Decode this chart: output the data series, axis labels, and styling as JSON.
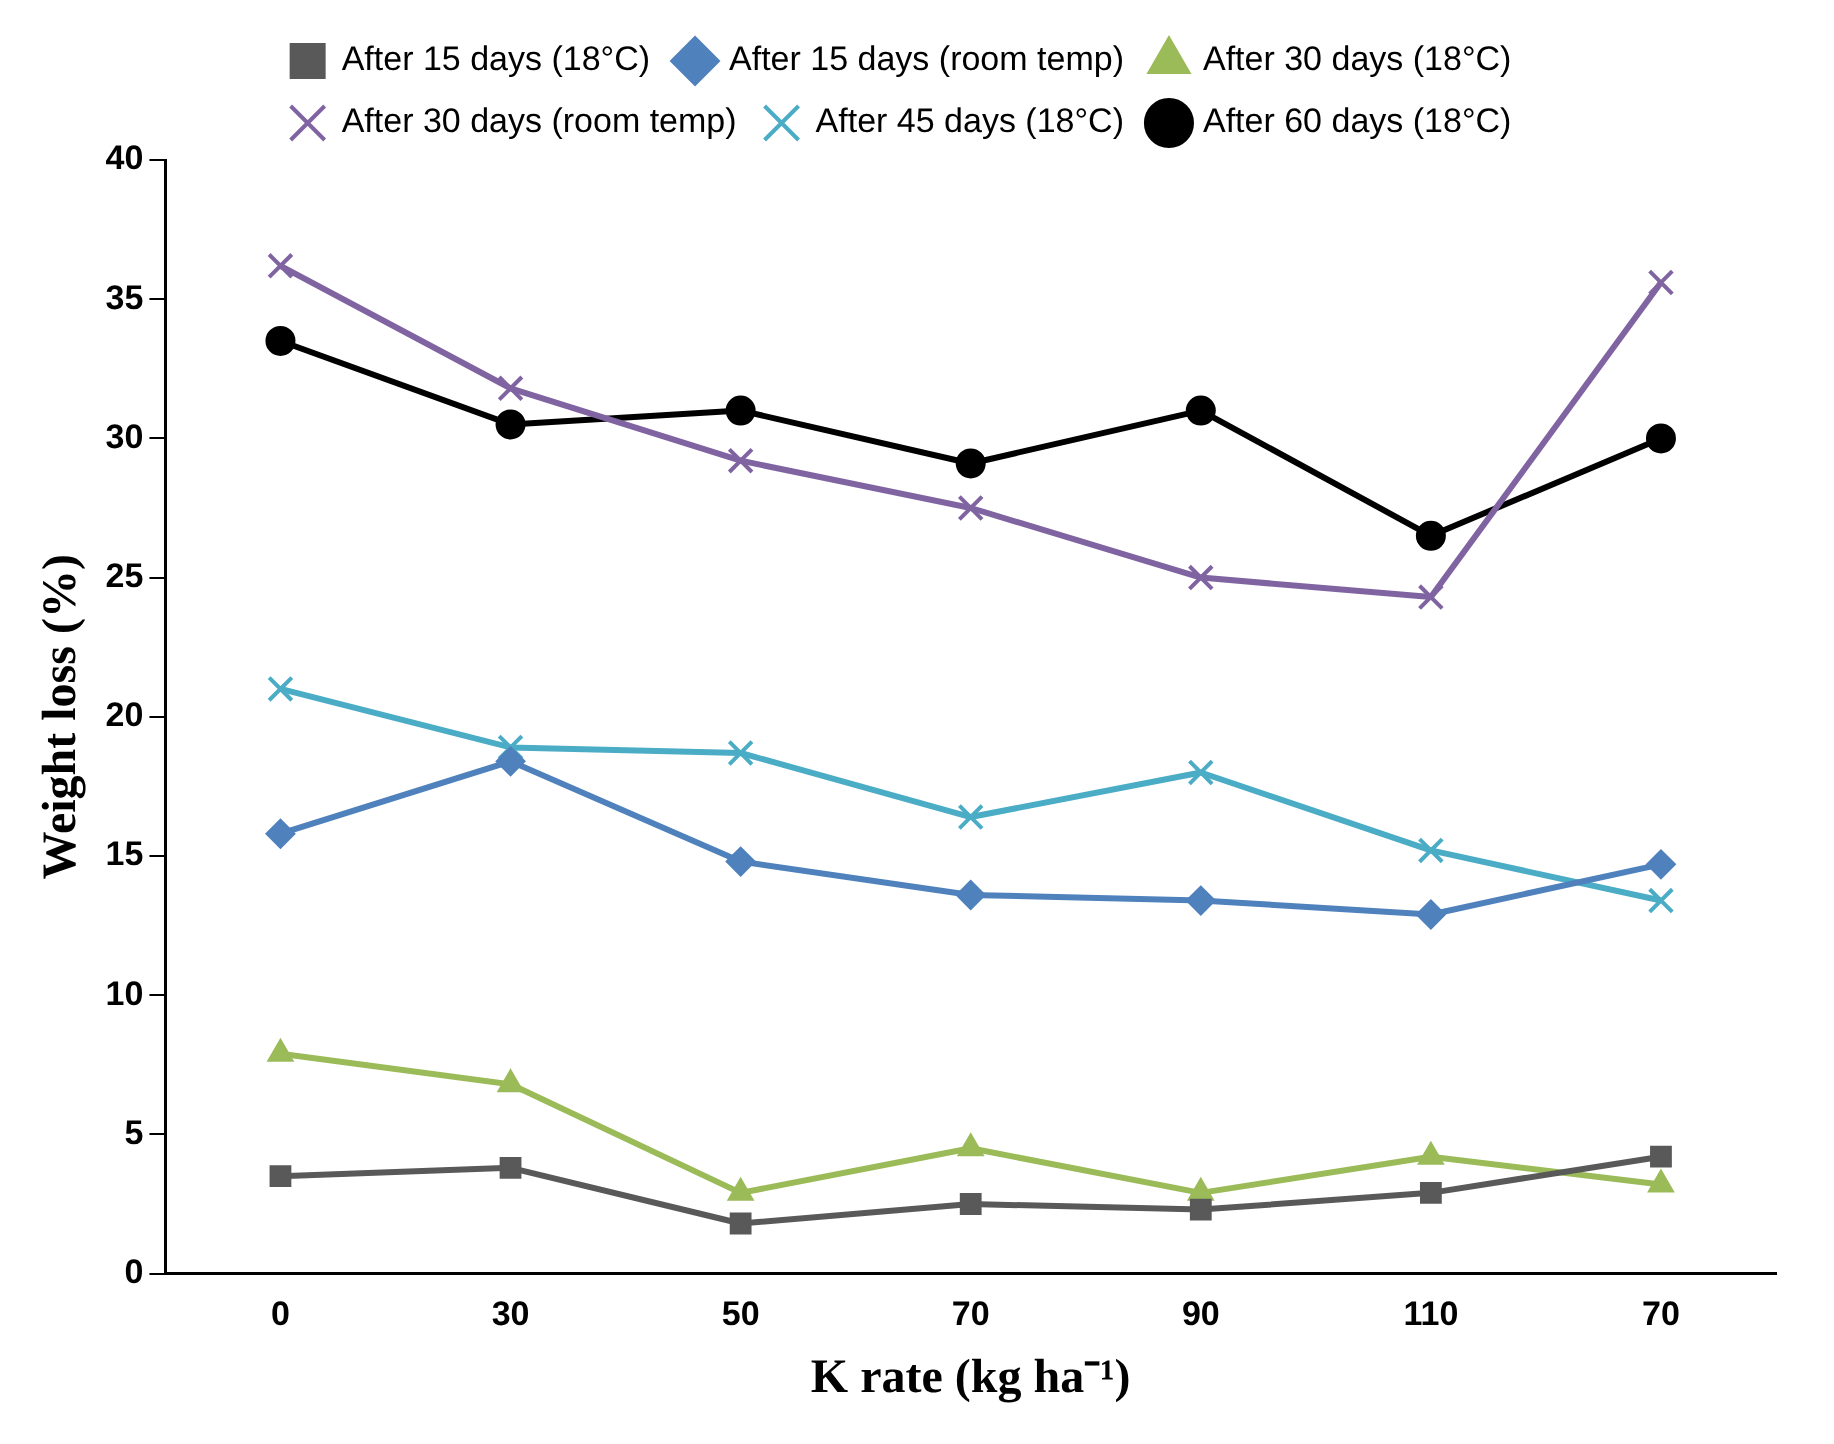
{
  "chart_data": {
    "type": "line",
    "xlabel": "K rate (kg ha⁻¹)",
    "ylabel": "Weight loss (%)",
    "categories": [
      "0",
      "30",
      "50",
      "70",
      "90",
      "110",
      "70"
    ],
    "ylim": [
      0,
      40
    ],
    "yticks": [
      0,
      5,
      10,
      15,
      20,
      25,
      30,
      35,
      40
    ],
    "grid": false,
    "legend": "top",
    "line_style": "solid",
    "series": [
      {
        "name": "After 15 days (18°C)",
        "color": "#595959",
        "marker": "square",
        "values": [
          3.5,
          3.8,
          1.8,
          2.5,
          2.3,
          2.9,
          4.2
        ]
      },
      {
        "name": "After 15 days (room temp)",
        "color": "#4f81bd",
        "marker": "diamond",
        "values": [
          15.8,
          18.4,
          14.8,
          13.6,
          13.4,
          12.9,
          14.7
        ]
      },
      {
        "name": "After 30 days (18°C)",
        "color": "#9bbb59",
        "marker": "triangle",
        "values": [
          7.9,
          6.8,
          2.9,
          4.5,
          2.9,
          4.2,
          3.2
        ]
      },
      {
        "name": "After 30 days (room temp)",
        "color": "#8064a2",
        "marker": "cross",
        "values": [
          36.2,
          31.8,
          29.2,
          27.5,
          25.0,
          24.3,
          35.6
        ]
      },
      {
        "name": "After 45 days (18°C)",
        "color": "#4bacc6",
        "marker": "cross",
        "values": [
          21.0,
          18.9,
          18.7,
          16.4,
          18.0,
          15.2,
          13.4
        ]
      },
      {
        "name": "After 60 days (18°C)",
        "color": "#000000",
        "marker": "circle",
        "values": [
          33.5,
          30.5,
          31.0,
          29.1,
          31.0,
          26.5,
          30.0
        ]
      }
    ]
  }
}
